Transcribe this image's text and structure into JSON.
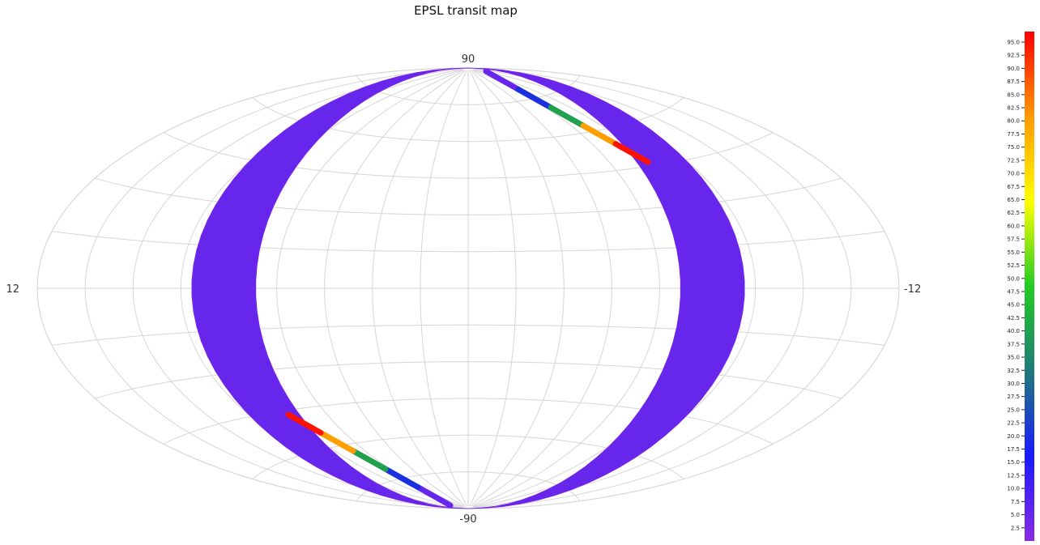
{
  "chart_data": {
    "type": "heatmap",
    "title": "EPSL transit map",
    "projection": "Aitoff (all-sky ellipse)",
    "grid": true,
    "lon_labels": {
      "left": "12",
      "right": "-12"
    },
    "lat_labels": {
      "top": "90",
      "bottom": "-90"
    },
    "colorbar": {
      "position": "right",
      "min": 0,
      "max": 97,
      "ticks": [
        "95.0",
        "92.5",
        "90.0",
        "87.5",
        "85.0",
        "82.5",
        "80.0",
        "77.5",
        "75.0",
        "72.5",
        "70.0",
        "67.5",
        "65.0",
        "62.5",
        "60.0",
        "57.5",
        "55.0",
        "52.5",
        "50.0",
        "47.5",
        "45.0",
        "42.5",
        "40.0",
        "37.5",
        "35.0",
        "32.5",
        "30.0",
        "27.5",
        "25.0",
        "22.5",
        "20.0",
        "17.5",
        "15.0",
        "12.5",
        "10.0",
        "7.5",
        "5.0",
        "2.5"
      ],
      "colormap": [
        "#8a2be2",
        "#1a1aff",
        "#1f7a7a",
        "#22cc22",
        "#ffff00",
        "#ff9900",
        "#ff0000"
      ]
    },
    "band_value_typical": 5,
    "band_value_ecliptic_crossings": [
      5,
      20,
      40,
      80,
      95
    ]
  }
}
